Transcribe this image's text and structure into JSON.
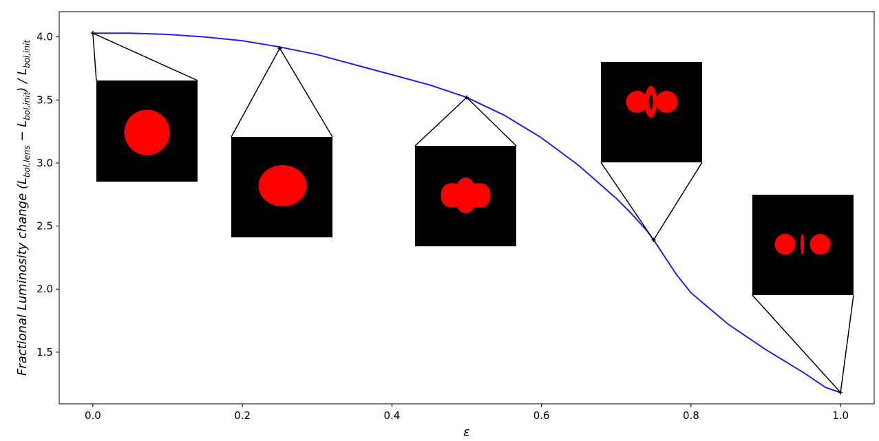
{
  "chart_data": {
    "type": "line",
    "title": "",
    "xlabel": "ε",
    "ylabel_parts": {
      "prefix": "Fractional Luminosity change (",
      "L1": "L",
      "sub1": "bol,lens",
      "minus": " − ",
      "L2": "L",
      "sub2": "bol,init",
      "mid": ") / ",
      "L3": "L",
      "sub3": "bol,init"
    },
    "xlim": [
      -0.045,
      1.045
    ],
    "ylim": [
      1.09,
      4.2
    ],
    "xticks": [
      0.0,
      0.2,
      0.4,
      0.6,
      0.8,
      1.0
    ],
    "xtick_labels": [
      "0.0",
      "0.2",
      "0.4",
      "0.6",
      "0.8",
      "1.0"
    ],
    "yticks": [
      1.5,
      2.0,
      2.5,
      3.0,
      3.5,
      4.0
    ],
    "ytick_labels": [
      "1.5",
      "2.0",
      "2.5",
      "3.0",
      "3.5",
      "4.0"
    ],
    "grid": false,
    "series": [
      {
        "color": "#1f1fe6",
        "x": [
          0.0,
          0.05,
          0.1,
          0.15,
          0.2,
          0.25,
          0.3,
          0.35,
          0.4,
          0.45,
          0.5,
          0.55,
          0.6,
          0.65,
          0.7,
          0.72,
          0.74,
          0.75,
          0.76,
          0.78,
          0.8,
          0.85,
          0.9,
          0.95,
          0.98,
          1.0
        ],
        "y": [
          4.03,
          4.03,
          4.02,
          4.0,
          3.97,
          3.92,
          3.86,
          3.78,
          3.7,
          3.62,
          3.52,
          3.38,
          3.2,
          2.98,
          2.72,
          2.6,
          2.47,
          2.39,
          2.3,
          2.12,
          1.97,
          1.72,
          1.52,
          1.34,
          1.22,
          1.18
        ]
      }
    ],
    "markers": [
      {
        "x": 0.0,
        "y": 4.03
      },
      {
        "x": 0.25,
        "y": 3.91
      },
      {
        "x": 0.5,
        "y": 3.52
      },
      {
        "x": 0.75,
        "y": 2.39
      },
      {
        "x": 1.0,
        "y": 1.18
      }
    ],
    "insets": [
      {
        "epsilon": 0.0,
        "shape": "circle"
      },
      {
        "epsilon": 0.25,
        "shape": "ellipse"
      },
      {
        "epsilon": 0.5,
        "shape": "peanut"
      },
      {
        "epsilon": 0.75,
        "shape": "split-with-arcs"
      },
      {
        "epsilon": 1.0,
        "shape": "split-with-line"
      }
    ],
    "inset_background": "#000000",
    "inset_image_color": "#ff0000"
  }
}
